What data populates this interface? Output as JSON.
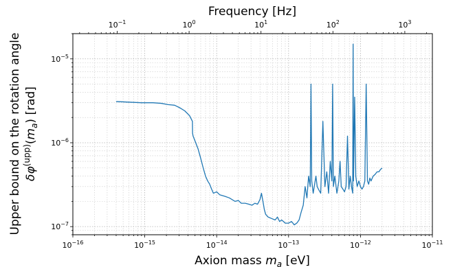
{
  "chart_data": {
    "type": "line",
    "xlabel": "Axion mass m_a [eV]",
    "xlabel_parts": {
      "pre": "Axion mass ",
      "var": "m",
      "sub": "a",
      "post": " [eV]"
    },
    "top_xlabel": "Frequency [Hz]",
    "ylabel_line1": "Upper bound on the rotation angle",
    "ylabel_line2_parts": {
      "pre": "δφ",
      "sup": "(upp)",
      "mid": "(",
      "var": "m",
      "sub": "a",
      "post": ") [rad]"
    },
    "x_scale": "log",
    "y_scale": "log",
    "xlim": [
      1e-16,
      1e-11
    ],
    "ylim": [
      8e-08,
      2e-05
    ],
    "top_xlim_hz": [
      0.02418,
      2418
    ],
    "grid": true,
    "color": "#1f77b4",
    "x_ticks": [
      {
        "value": 1e-16,
        "base": "10",
        "exp": "−16"
      },
      {
        "value": 1e-15,
        "base": "10",
        "exp": "−15"
      },
      {
        "value": 1e-14,
        "base": "10",
        "exp": "−14"
      },
      {
        "value": 1e-13,
        "base": "10",
        "exp": "−13"
      },
      {
        "value": 1e-12,
        "base": "10",
        "exp": "−12"
      },
      {
        "value": 1e-11,
        "base": "10",
        "exp": "−11"
      }
    ],
    "top_ticks": [
      {
        "value": 0.1,
        "base": "10",
        "exp": "−1"
      },
      {
        "value": 1,
        "base": "10",
        "exp": "0"
      },
      {
        "value": 10,
        "base": "10",
        "exp": "1"
      },
      {
        "value": 100,
        "base": "10",
        "exp": "2"
      },
      {
        "value": 1000,
        "base": "10",
        "exp": "3"
      }
    ],
    "y_ticks": [
      {
        "value": 1e-07,
        "base": "10",
        "exp": "−7"
      },
      {
        "value": 1e-06,
        "base": "10",
        "exp": "−6"
      },
      {
        "value": 1e-05,
        "base": "10",
        "exp": "−5"
      }
    ],
    "series": [
      {
        "x": [
          4e-16,
          6e-16,
          9e-16,
          1.3e-15,
          1.7e-15,
          2.1e-15,
          2.6e-15,
          3.1e-15,
          3.6e-15,
          4.2e-15,
          4.6e-15,
          4.62e-15,
          4.7e-15,
          5e-15,
          5.5e-15,
          6e-15,
          6.5e-15,
          7e-15,
          7.5e-15,
          8e-15,
          8.5e-15,
          9e-15,
          1e-14,
          1.1e-14,
          1.3e-14,
          1.5e-14,
          1.8e-14,
          2e-14,
          2.2e-14,
          2.5e-14,
          2.8e-14,
          3.1e-14,
          3.4e-14,
          3.7e-14,
          4e-14,
          4.2e-14,
          4.4e-14,
          4.6e-14,
          4.8e-14,
          5.2e-14,
          5.8e-14,
          6.5e-14,
          7e-14,
          7.5e-14,
          8e-14,
          8.5e-14,
          9e-14,
          1e-13,
          1.1e-13,
          1.2e-13,
          1.3e-13,
          1.4e-13,
          1.5e-13,
          1.6e-13,
          1.7e-13,
          1.8e-13,
          1.9e-13,
          2e-13,
          2.05e-13,
          2.1e-13,
          2.2e-13,
          2.4e-13,
          2.5e-13,
          2.6e-13,
          2.8e-13,
          3e-13,
          3.2e-13,
          3.4e-13,
          3.6e-13,
          3.8e-13,
          4e-13,
          4.1e-13,
          4.2e-13,
          4.4e-13,
          4.7e-13,
          5e-13,
          5.2e-13,
          5.4e-13,
          5.7e-13,
          6e-13,
          6.3e-13,
          6.6e-13,
          6.9e-13,
          7.2e-13,
          7.5e-13,
          7.8e-13,
          7.9e-13,
          8e-13,
          8.3e-13,
          8.6e-13,
          9e-13,
          9.5e-13,
          1e-12,
          1.05e-12,
          1.1e-12,
          1.15e-12,
          1.2e-12,
          1.25e-12,
          1.3e-12,
          1.35e-12,
          1.4e-12,
          1.5e-12,
          1.6e-12,
          1.7e-12,
          1.8e-12,
          1.9e-12,
          2e-12
        ],
        "y": [
          3.1e-06,
          3.05e-06,
          3e-06,
          3e-06,
          2.95e-06,
          2.85e-06,
          2.8e-06,
          2.6e-06,
          2.4e-06,
          2.1e-06,
          1.8e-06,
          1.3e-06,
          1.2e-06,
          1.05e-06,
          8.5e-07,
          6.5e-07,
          5e-07,
          4e-07,
          3.5e-07,
          3.2e-07,
          2.8e-07,
          2.5e-07,
          2.6e-07,
          2.4e-07,
          2.3e-07,
          2.2e-07,
          2e-07,
          2.05e-07,
          1.9e-07,
          1.9e-07,
          1.85e-07,
          1.8e-07,
          1.9e-07,
          1.85e-07,
          2.1e-07,
          2.5e-07,
          2e-07,
          1.6e-07,
          1.4e-07,
          1.3e-07,
          1.25e-07,
          1.2e-07,
          1.3e-07,
          1.15e-07,
          1.2e-07,
          1.15e-07,
          1.1e-07,
          1.1e-07,
          1.15e-07,
          1.05e-07,
          1.1e-07,
          1.2e-07,
          1.5e-07,
          1.8e-07,
          3e-07,
          2.2e-07,
          4e-07,
          3e-07,
          5e-06,
          3.5e-07,
          2.5e-07,
          4e-07,
          3e-07,
          2.8e-07,
          2.5e-07,
          1.8e-06,
          3e-07,
          4.5e-07,
          2.5e-07,
          6e-07,
          3.5e-07,
          5e-06,
          3e-07,
          4e-07,
          2.5e-07,
          3.5e-07,
          6e-07,
          3e-07,
          2.8e-07,
          2.6e-07,
          3e-07,
          1.2e-06,
          2.8e-07,
          4e-07,
          3e-07,
          2.5e-07,
          1.5e-05,
          3.5e-07,
          3.5e-06,
          4e-07,
          3e-07,
          3.5e-07,
          3e-07,
          2.8e-07,
          3e-07,
          3.5e-07,
          5e-06,
          3.5e-07,
          3.2e-07,
          3.8e-07,
          3.5e-07,
          4e-07,
          4.2e-07,
          4.5e-07,
          4.5e-07,
          4.8e-07,
          5e-07
        ]
      }
    ]
  }
}
